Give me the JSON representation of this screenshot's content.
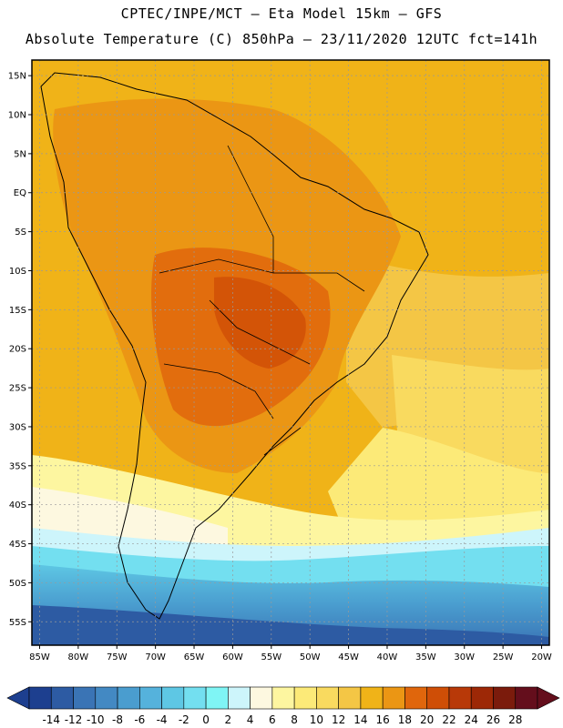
{
  "header": {
    "line1": "CPTEC/INPE/MCT –  Eta Model 15km – GFS",
    "line2": "Absolute Temperature (C) 850hPa – 23/11/2020 12UTC fct=141h"
  },
  "map": {
    "lon_range": [
      -86,
      -19
    ],
    "lat_range": [
      -58,
      17
    ],
    "lat_ticks": [
      {
        "value": 15,
        "label": "15N"
      },
      {
        "value": 10,
        "label": "10N"
      },
      {
        "value": 5,
        "label": "5N"
      },
      {
        "value": 0,
        "label": "EQ"
      },
      {
        "value": -5,
        "label": "5S"
      },
      {
        "value": -10,
        "label": "10S"
      },
      {
        "value": -15,
        "label": "15S"
      },
      {
        "value": -20,
        "label": "20S"
      },
      {
        "value": -25,
        "label": "25S"
      },
      {
        "value": -30,
        "label": "30S"
      },
      {
        "value": -35,
        "label": "35S"
      },
      {
        "value": -40,
        "label": "40S"
      },
      {
        "value": -45,
        "label": "45S"
      },
      {
        "value": -50,
        "label": "50S"
      },
      {
        "value": -55,
        "label": "55S"
      }
    ],
    "lon_ticks": [
      {
        "value": -85,
        "label": "85W"
      },
      {
        "value": -80,
        "label": "80W"
      },
      {
        "value": -75,
        "label": "75W"
      },
      {
        "value": -70,
        "label": "70W"
      },
      {
        "value": -65,
        "label": "65W"
      },
      {
        "value": -60,
        "label": "60W"
      },
      {
        "value": -55,
        "label": "55W"
      },
      {
        "value": -50,
        "label": "50W"
      },
      {
        "value": -45,
        "label": "45W"
      },
      {
        "value": -40,
        "label": "40W"
      },
      {
        "value": -35,
        "label": "35W"
      },
      {
        "value": -30,
        "label": "30W"
      },
      {
        "value": -25,
        "label": "25W"
      },
      {
        "value": -20,
        "label": "20W"
      }
    ],
    "gridlines": true
  },
  "colorbar": {
    "labels": [
      "-14",
      "-12",
      "-10",
      "-8",
      "-6",
      "-4",
      "-2",
      "0",
      "2",
      "4",
      "6",
      "8",
      "10",
      "12",
      "14",
      "16",
      "18",
      "20",
      "22",
      "24",
      "26",
      "28"
    ],
    "colors": [
      "#1d3f8f",
      "#2d5ba3",
      "#3a74b5",
      "#4389c3",
      "#4a9dcf",
      "#55b2dc",
      "#5ec7e4",
      "#73dff0",
      "#7ff5f5",
      "#cdf5fb",
      "#fdf8e0",
      "#fdf6a0",
      "#fcea78",
      "#f9da5f",
      "#f4c645",
      "#f0b318",
      "#eb9614",
      "#e0660c",
      "#cf4e06",
      "#b83908",
      "#9d2806",
      "#7b1b0c",
      "#640e1c"
    ]
  }
}
